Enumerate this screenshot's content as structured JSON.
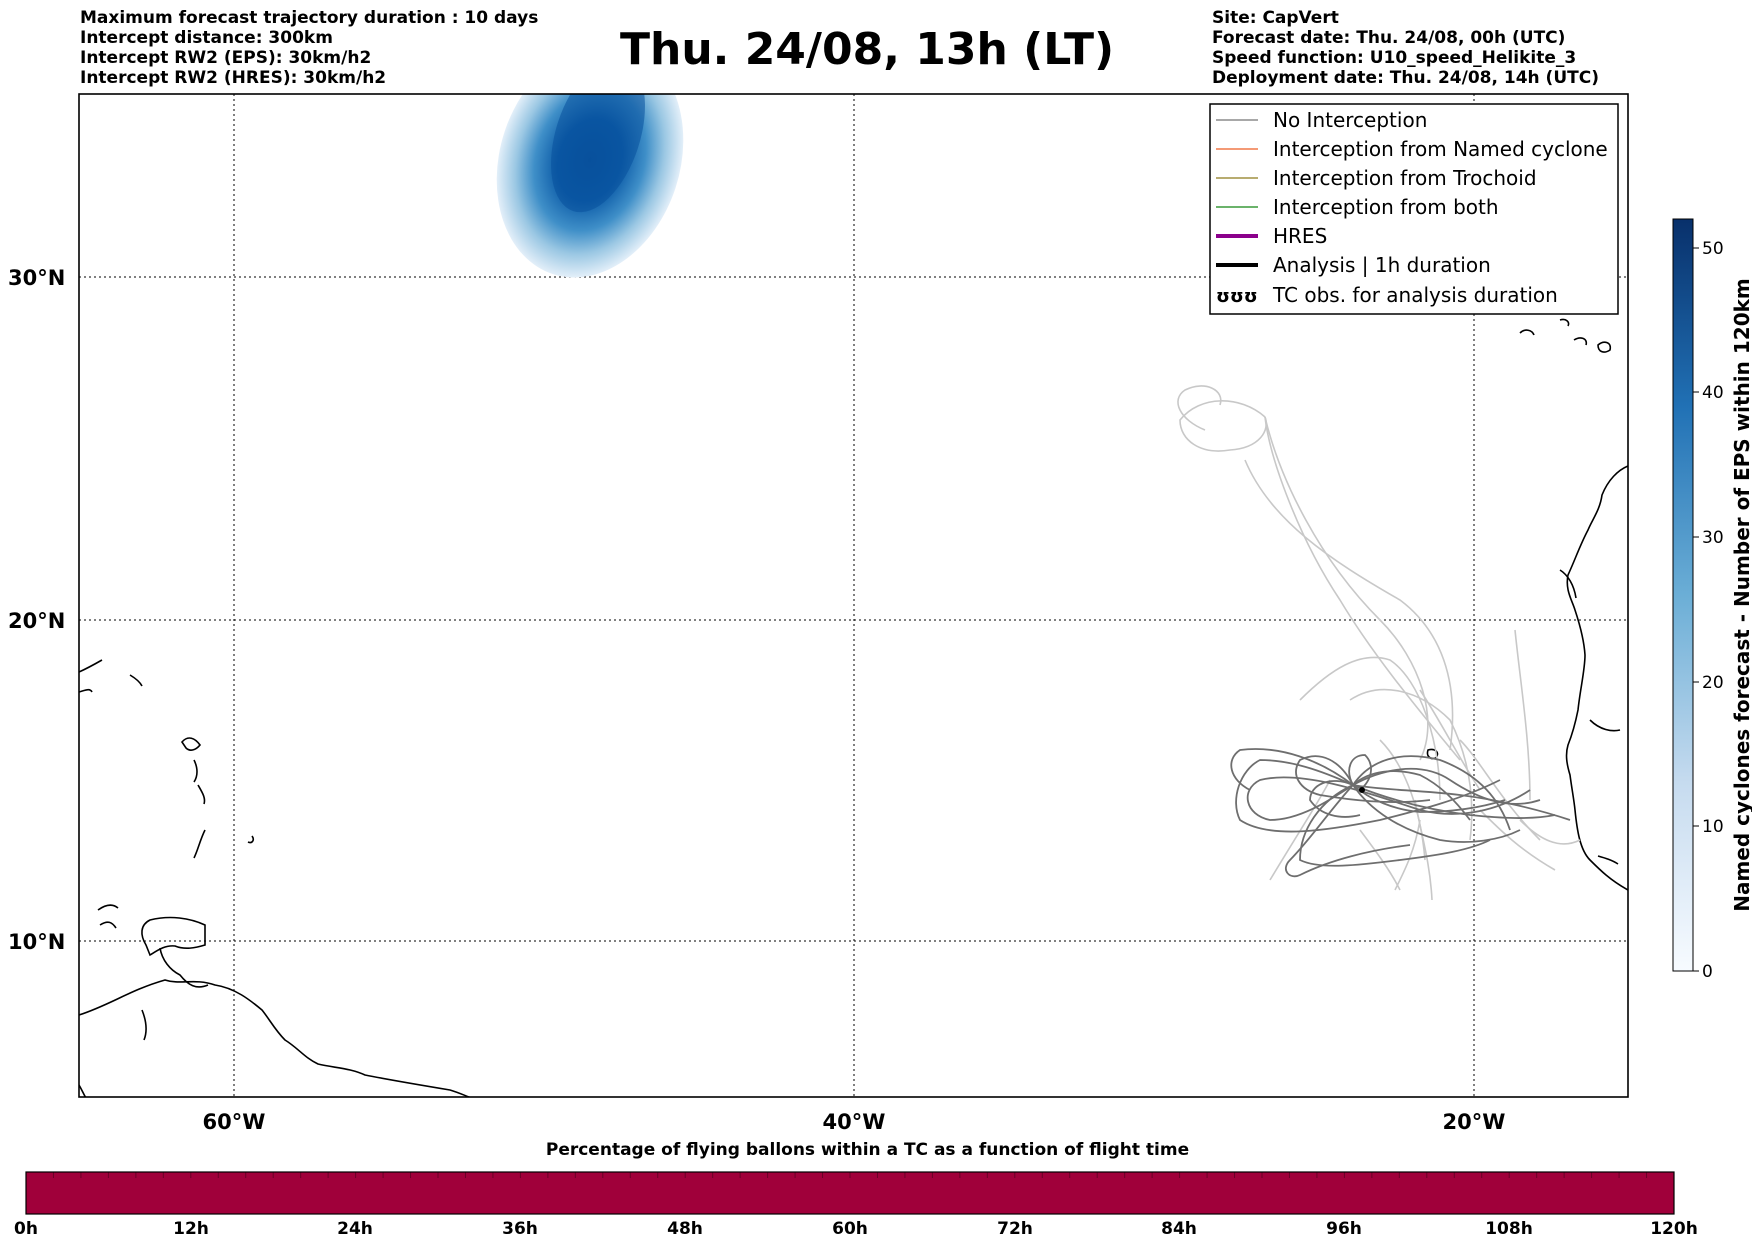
{
  "header": {
    "left_lines": [
      "Maximum forecast trajectory duration : 10 days",
      "Intercept distance: 300km",
      "Intercept RW2 (EPS):  30km/h2",
      "Intercept RW2 (HRES): 30km/h2"
    ],
    "title": "Thu. 24/08, 13h (LT)",
    "right_lines": [
      "Site: CapVert",
      "Forecast date: Thu. 24/08, 00h (UTC)",
      "Speed function: U10_speed_Helikite_3",
      "Deployment date: Thu. 24/08, 14h (UTC)"
    ]
  },
  "map": {
    "lon_range": [
      -65,
      15
    ],
    "lat_range": [
      5,
      34.7
    ],
    "lat_labels": [
      "30°N",
      "20°N",
      "10°N"
    ],
    "lon_labels": [
      "60°W",
      "40°W",
      "20°W"
    ],
    "grid": "dotted"
  },
  "legend": {
    "placement": "top-right",
    "items": [
      {
        "label": "No Interception",
        "color": "#8c8c8c"
      },
      {
        "label": "Interception from Named cyclone",
        "color": "#f07848"
      },
      {
        "label": "Interception from Trochoid",
        "color": "#a09040"
      },
      {
        "label": "Interception from both",
        "color": "#3a9a3a"
      },
      {
        "label": "HRES",
        "color": "#8b008b"
      },
      {
        "label": "Analysis | 1h duration",
        "color": "#000000"
      },
      {
        "label": "TC obs. for analysis duration",
        "symbol": "ʊʊʊ"
      }
    ]
  },
  "colorbar": {
    "title": "Named cyclones forecast - Number of EPS within 120km",
    "ticks": [
      "0",
      "10",
      "20",
      "30",
      "40",
      "50"
    ],
    "range": [
      0,
      52
    ],
    "colors": [
      "#f7fbff",
      "#08306b"
    ]
  },
  "flight_bar": {
    "title": "Percentage of flying ballons within a TC as a function of flight time",
    "hours": [
      "0h",
      "12h",
      "24h",
      "36h",
      "48h",
      "60h",
      "72h",
      "84h",
      "96h",
      "108h",
      "120h"
    ],
    "color": "#a0003a"
  }
}
